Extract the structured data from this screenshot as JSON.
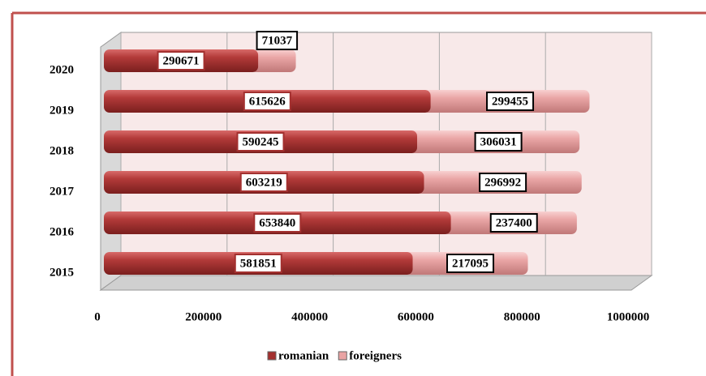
{
  "chart_data": {
    "type": "bar",
    "orientation": "horizontal",
    "stacked": true,
    "categories": [
      "2015",
      "2016",
      "2017",
      "2018",
      "2019",
      "2020"
    ],
    "series": [
      {
        "name": "romanian",
        "color": "#a3302f",
        "values": [
          581851,
          653840,
          603219,
          590245,
          615626,
          290671
        ]
      },
      {
        "name": "foreigners",
        "color": "#e9a3a3",
        "values": [
          217095,
          237400,
          296992,
          306031,
          299455,
          71037
        ]
      }
    ],
    "xlim": [
      0,
      1000000
    ],
    "xticks": [
      0,
      200000,
      400000,
      600000,
      800000,
      1000000
    ],
    "legend": "bottom"
  }
}
